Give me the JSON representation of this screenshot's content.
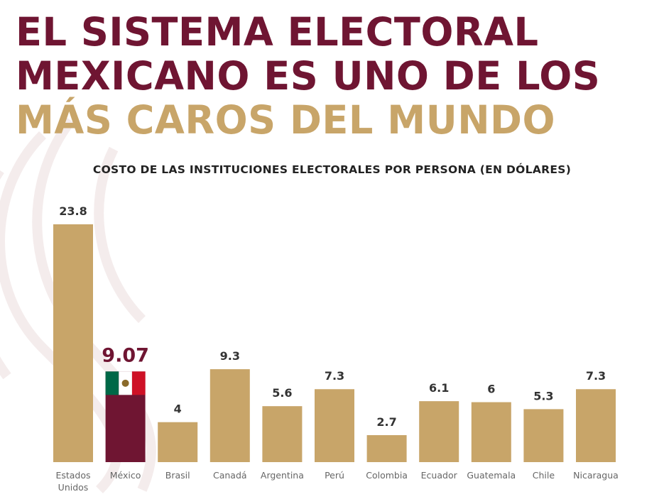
{
  "headline": {
    "line1": "EL SISTEMA ELECTORAL",
    "line2": "MEXICANO ES UNO DE LOS",
    "line3": "MÁS CAROS DEL MUNDO"
  },
  "colors": {
    "maroon": "#6f1532",
    "gold": "#c8a569",
    "bar_default": "#c8a569",
    "bar_highlight": "#6f1532",
    "flag_green": "#006847",
    "flag_white": "#ffffff",
    "flag_red": "#ce1126"
  },
  "highlight_flag_icon": "mexico-flag-icon",
  "chart_data": {
    "type": "bar",
    "title": "COSTO DE LAS INSTITUCIONES ELECTORALES POR PERSONA (EN DÓLARES)",
    "xlabel": "",
    "ylabel": "",
    "ylim": [
      0,
      23.8
    ],
    "grid": false,
    "highlight": "México",
    "categories": [
      [
        "Estados",
        "Unidos"
      ],
      [
        "México"
      ],
      [
        "Brasil"
      ],
      [
        "Canadá"
      ],
      [
        "Argentina"
      ],
      [
        "Perú"
      ],
      [
        "Colombia"
      ],
      [
        "Ecuador"
      ],
      [
        "Guatemala"
      ],
      [
        "Chile"
      ],
      [
        "Nicaragua"
      ]
    ],
    "values": [
      23.8,
      9.07,
      4,
      9.3,
      5.6,
      7.3,
      2.7,
      6.1,
      6,
      5.3,
      7.3
    ],
    "value_labels": [
      "23.8",
      "9.07",
      "4",
      "9.3",
      "5.6",
      "7.3",
      "2.7",
      "6.1",
      "6",
      "5.3",
      "7.3"
    ]
  }
}
